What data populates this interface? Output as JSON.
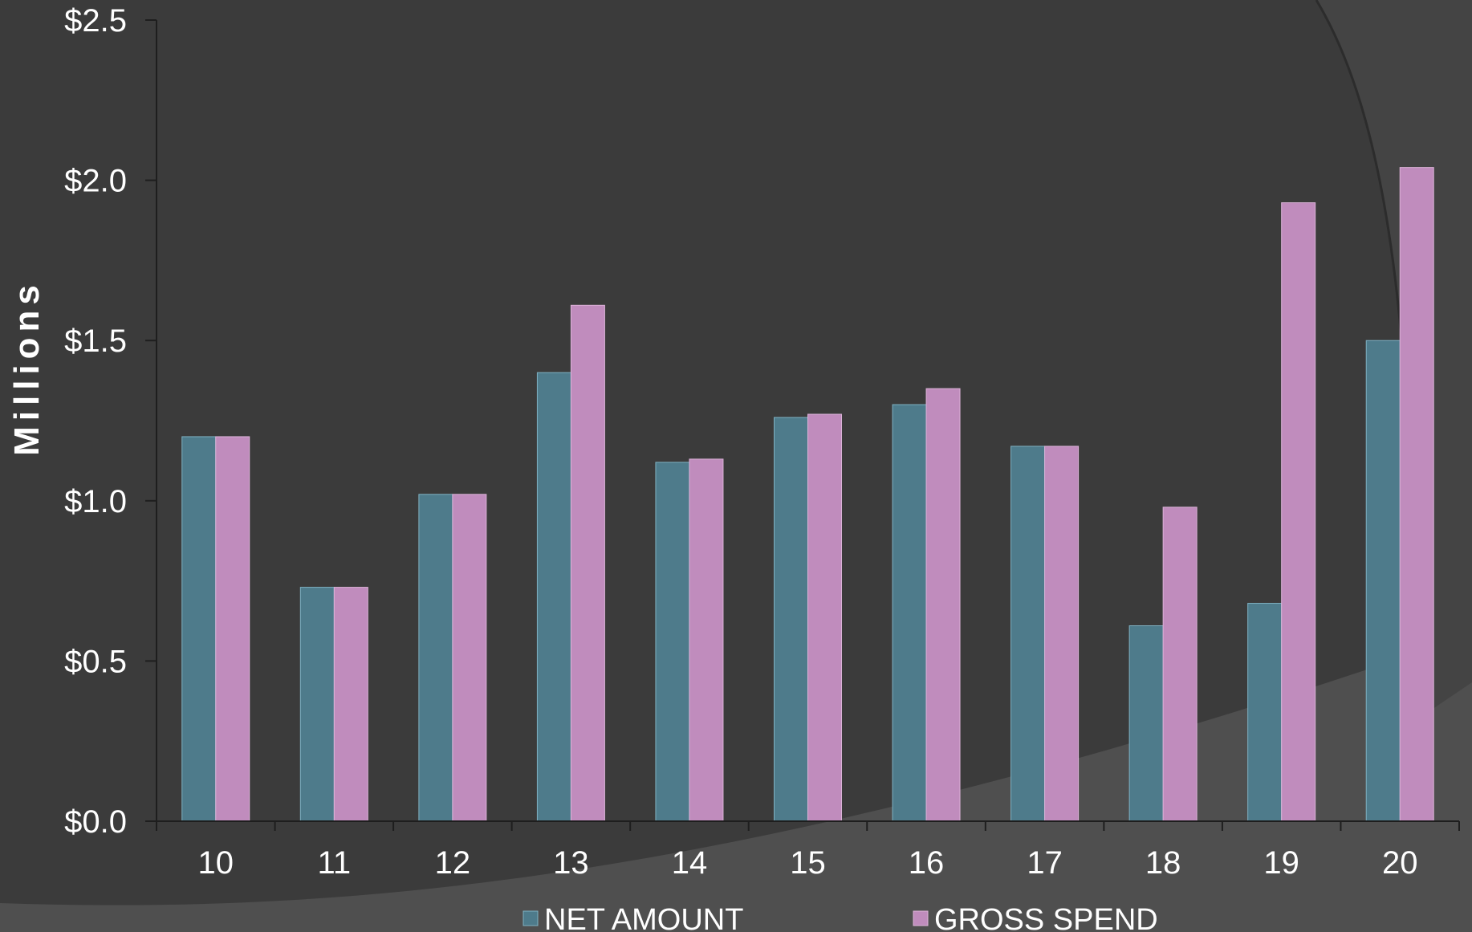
{
  "chart_data": {
    "type": "bar",
    "categories": [
      "10",
      "11",
      "12",
      "13",
      "14",
      "15",
      "16",
      "17",
      "18",
      "19",
      "20"
    ],
    "series": [
      {
        "name": "NET AMOUNT",
        "color": "#4e7b8b",
        "values": [
          1.2,
          0.73,
          1.02,
          1.4,
          1.12,
          1.26,
          1.3,
          1.17,
          0.61,
          0.68,
          1.5
        ]
      },
      {
        "name": "GROSS SPEND",
        "color": "#c08cbd",
        "values": [
          1.2,
          0.73,
          1.02,
          1.61,
          1.13,
          1.27,
          1.35,
          1.17,
          0.98,
          1.93,
          2.04
        ]
      }
    ],
    "ylabel": "Millions",
    "ylim": [
      0,
      2.5
    ],
    "yticks": [
      0,
      0.5,
      1.0,
      1.5,
      2.0,
      2.5
    ],
    "ytick_labels": [
      "$0.0",
      "$0.5",
      "$1.0",
      "$1.5",
      "$2.0",
      "$2.5"
    ],
    "grid": false,
    "legend": "bottom"
  },
  "colors": {
    "background": "#3b3b3b",
    "background_arc": "#4f4f4f",
    "axis": "#1e1e1e",
    "text": "#ffffff"
  }
}
